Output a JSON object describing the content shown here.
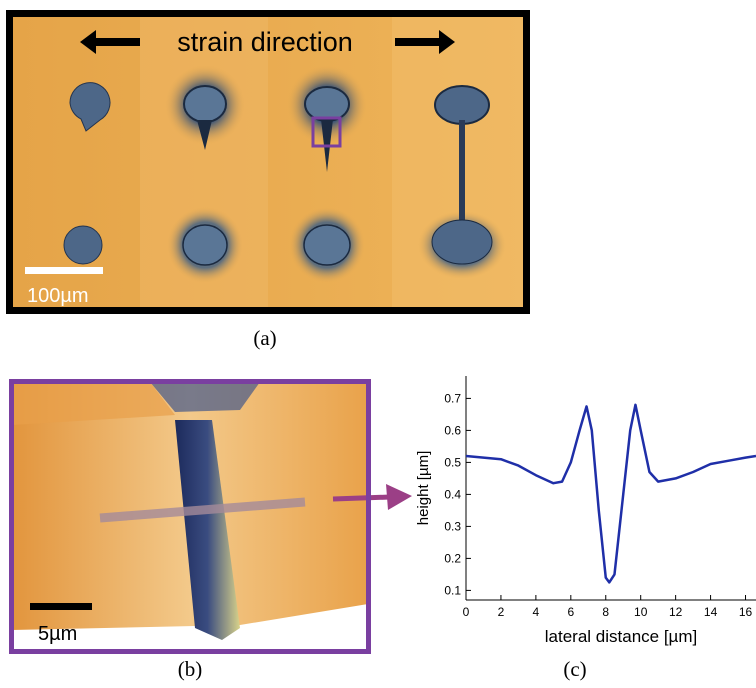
{
  "panels": {
    "a": {
      "label": "(a)",
      "annotation": "strain direction",
      "scale_bar": "100µm"
    },
    "b": {
      "label": "(b)",
      "scale_bar": "5µm"
    },
    "c": {
      "label": "(c)"
    }
  },
  "chart_data": {
    "type": "line",
    "x_label": "lateral distance [µm]",
    "y_label": "height [µm]",
    "x": [
      0,
      1,
      2,
      3,
      4,
      5,
      5.5,
      6,
      6.5,
      6.9,
      7.2,
      7.6,
      8,
      8.2,
      8.5,
      9,
      9.4,
      9.7,
      10,
      10.5,
      11,
      12,
      13,
      14,
      15,
      16,
      16.6
    ],
    "values": [
      0.52,
      0.515,
      0.51,
      0.49,
      0.46,
      0.435,
      0.44,
      0.5,
      0.6,
      0.675,
      0.6,
      0.35,
      0.14,
      0.125,
      0.15,
      0.4,
      0.6,
      0.68,
      0.6,
      0.47,
      0.44,
      0.45,
      0.47,
      0.495,
      0.505,
      0.515,
      0.52
    ],
    "color": "#1f2fa8",
    "xlim": [
      0,
      16.6
    ],
    "ylim": [
      0.07,
      0.77
    ],
    "xticks": [
      0,
      2,
      4,
      6,
      8,
      10,
      12,
      14,
      16
    ],
    "yticks": [
      0.1,
      0.2,
      0.3,
      0.4,
      0.5,
      0.6,
      0.7
    ]
  }
}
